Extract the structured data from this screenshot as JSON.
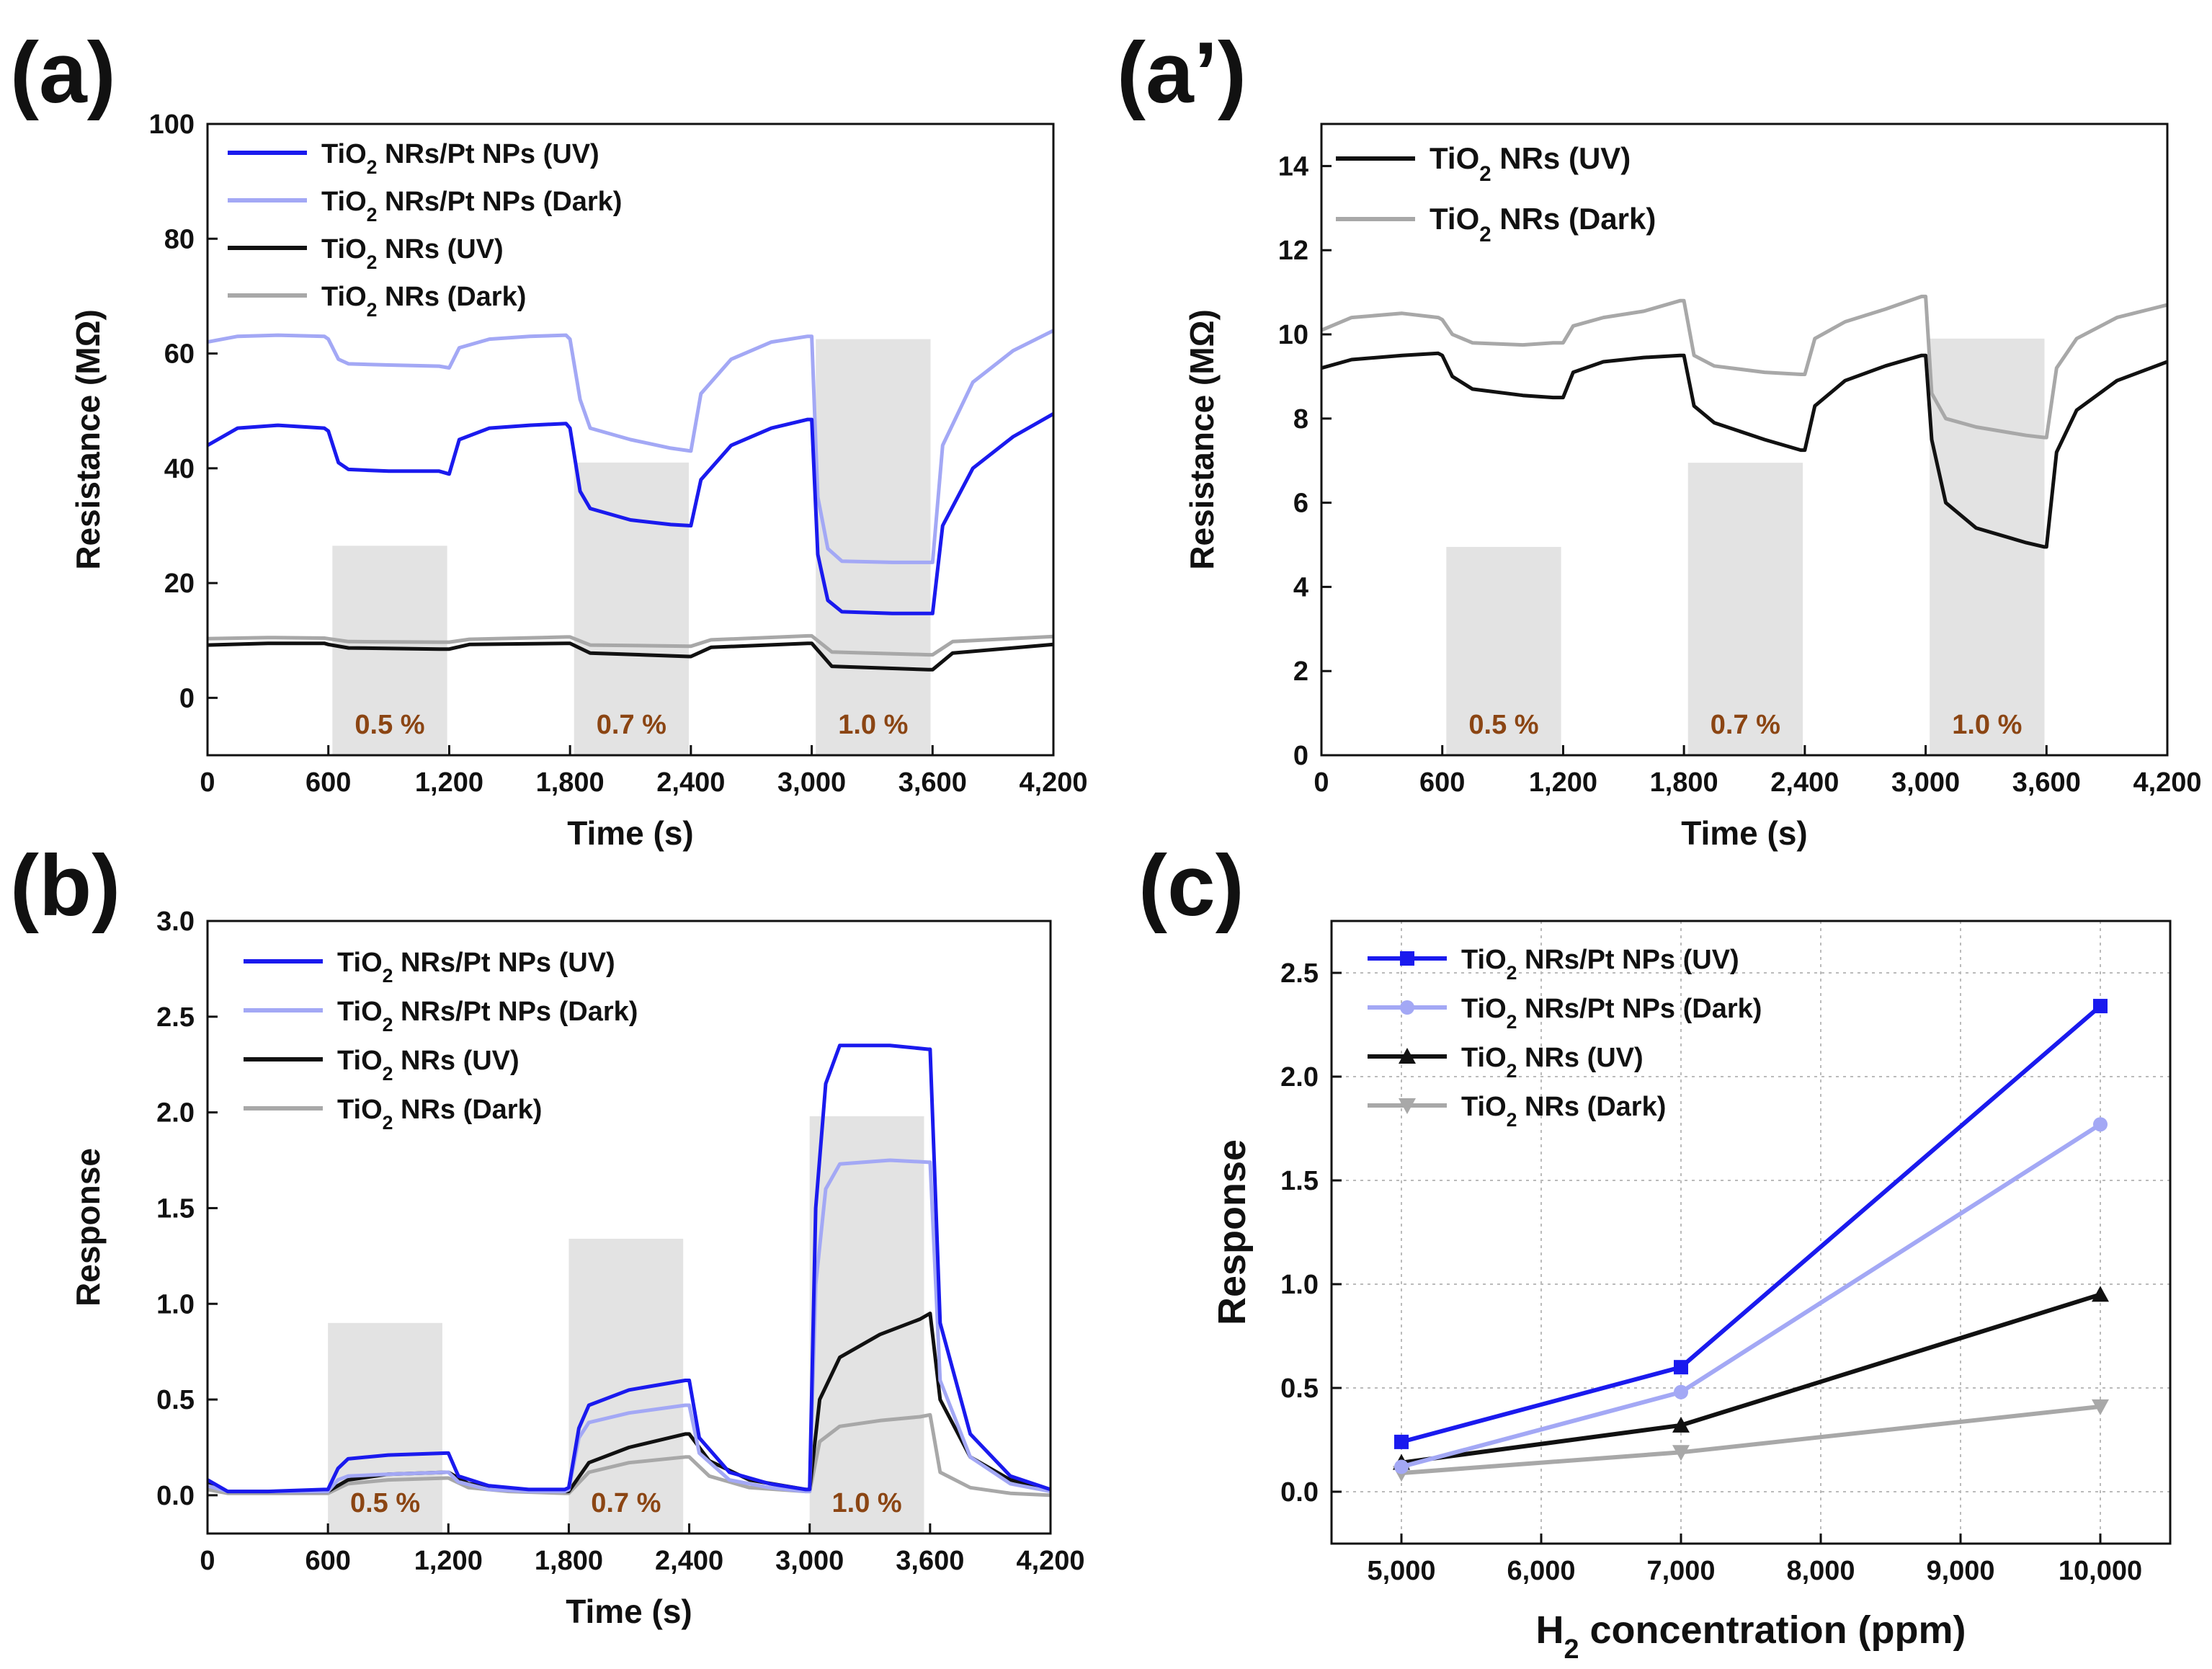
{
  "colors": {
    "pt_uv": "#1a1aee",
    "pt_dark": "#a3a8f5",
    "nr_uv": "#111111",
    "nr_dark": "#a8a8a8",
    "shade": "#e3e3e3",
    "conc_label": "#8b4513"
  },
  "chart_data": [
    {
      "id": "a",
      "type": "line",
      "panel_label": "(a)",
      "xlabel": "Time (s)",
      "ylabel": "Resistance (MΩ)",
      "xlim": [
        0,
        4200
      ],
      "ylim": [
        -10,
        100
      ],
      "xticks": [
        0,
        600,
        1200,
        1800,
        2400,
        3000,
        3600,
        4200
      ],
      "xtick_labels": [
        "0",
        "600",
        "1,200",
        "1,800",
        "2,400",
        "3,000",
        "3,600",
        "4,200"
      ],
      "yticks": [
        0,
        20,
        40,
        60,
        80,
        100
      ],
      "ytick_labels": [
        "0",
        "20",
        "40",
        "60",
        "80",
        "100"
      ],
      "legend_position": "top-left",
      "shaded_regions": [
        {
          "x0": 620,
          "x1": 1190,
          "ytop": 26.5,
          "label": "0.5 %"
        },
        {
          "x0": 1820,
          "x1": 2390,
          "ytop": 41,
          "label": "0.7 %"
        },
        {
          "x0": 3020,
          "x1": 3590,
          "ytop": 62.5,
          "label": "1.0 %"
        }
      ],
      "series": [
        {
          "name": "TiO₂ NRs/Pt NPs (UV)",
          "legend_main": "TiO",
          "legend_sub": "2",
          "legend_rest": " NRs/Pt NPs (UV)",
          "color_key": "pt_uv",
          "x": [
            0,
            150,
            350,
            580,
            600,
            650,
            700,
            900,
            1150,
            1200,
            1250,
            1400,
            1600,
            1780,
            1800,
            1850,
            1900,
            2100,
            2300,
            2400,
            2450,
            2600,
            2800,
            2980,
            3000,
            3030,
            3080,
            3150,
            3400,
            3590,
            3600,
            3650,
            3800,
            4000,
            4200
          ],
          "y": [
            44,
            47,
            47.5,
            47,
            46.5,
            41,
            39.8,
            39.5,
            39.5,
            39,
            45,
            47,
            47.5,
            47.8,
            47,
            36,
            33,
            31,
            30.2,
            30,
            38,
            44,
            47,
            48.5,
            48.5,
            25,
            17,
            15,
            14.7,
            14.7,
            14.7,
            30,
            40,
            45.5,
            49.5
          ]
        },
        {
          "name": "TiO₂ NRs/Pt NPs (Dark)",
          "legend_main": "TiO",
          "legend_sub": "2",
          "legend_rest": " NRs/Pt NPs (Dark)",
          "color_key": "pt_dark",
          "x": [
            0,
            150,
            350,
            580,
            600,
            650,
            700,
            900,
            1150,
            1200,
            1250,
            1400,
            1600,
            1780,
            1800,
            1850,
            1900,
            2100,
            2300,
            2400,
            2450,
            2600,
            2800,
            2980,
            3000,
            3030,
            3080,
            3150,
            3400,
            3590,
            3600,
            3650,
            3800,
            4000,
            4200
          ],
          "y": [
            62,
            63,
            63.2,
            63,
            62.5,
            59,
            58.2,
            58,
            57.8,
            57.5,
            61,
            62.5,
            63,
            63.2,
            62.5,
            52,
            47,
            45,
            43.5,
            43,
            53,
            59,
            62,
            63,
            63,
            35,
            26,
            23.8,
            23.6,
            23.6,
            23.6,
            44,
            55,
            60.5,
            64
          ]
        },
        {
          "name": "TiO₂ NRs (UV)",
          "legend_main": "TiO",
          "legend_sub": "2",
          "legend_rest": " NRs (UV)",
          "color_key": "nr_uv",
          "x": [
            0,
            300,
            580,
            600,
            700,
            1150,
            1200,
            1300,
            1780,
            1800,
            1900,
            2390,
            2400,
            2500,
            2980,
            3000,
            3100,
            3580,
            3600,
            3700,
            4200
          ],
          "y": [
            9.2,
            9.5,
            9.5,
            9.3,
            8.7,
            8.5,
            8.5,
            9.3,
            9.5,
            9.5,
            7.8,
            7.2,
            7.2,
            8.8,
            9.5,
            9.5,
            5.5,
            4.9,
            4.9,
            7.8,
            9.3
          ]
        },
        {
          "name": "TiO₂ NRs (Dark)",
          "legend_main": "TiO",
          "legend_sub": "2",
          "legend_rest": " NRs (Dark)",
          "color_key": "nr_dark",
          "x": [
            0,
            300,
            580,
            600,
            700,
            1150,
            1200,
            1300,
            1780,
            1800,
            1900,
            2390,
            2400,
            2500,
            2980,
            3000,
            3100,
            3580,
            3600,
            3700,
            4200
          ],
          "y": [
            10.3,
            10.5,
            10.4,
            10.3,
            9.8,
            9.7,
            9.7,
            10.2,
            10.6,
            10.6,
            9.2,
            9.0,
            9.0,
            10.1,
            10.8,
            10.8,
            8.0,
            7.5,
            7.5,
            9.8,
            10.7
          ]
        }
      ]
    },
    {
      "id": "a2",
      "type": "line",
      "panel_label": "(a’)",
      "xlabel": "Time (s)",
      "ylabel": "Resistance (MΩ)",
      "xlim": [
        0,
        4200
      ],
      "ylim": [
        0,
        15
      ],
      "xticks": [
        0,
        600,
        1200,
        1800,
        2400,
        3000,
        3600,
        4200
      ],
      "xtick_labels": [
        "0",
        "600",
        "1,200",
        "1,800",
        "2,400",
        "3,000",
        "3,600",
        "4,200"
      ],
      "yticks": [
        0,
        2,
        4,
        6,
        8,
        10,
        12,
        14
      ],
      "ytick_labels": [
        "0",
        "2",
        "4",
        "6",
        "8",
        "10",
        "12",
        "14"
      ],
      "legend_position": "top-left",
      "shaded_regions": [
        {
          "x0": 620,
          "x1": 1190,
          "ytop": 4.95,
          "label": "0.5 %"
        },
        {
          "x0": 1820,
          "x1": 2390,
          "ytop": 6.95,
          "label": "0.7 %"
        },
        {
          "x0": 3020,
          "x1": 3590,
          "ytop": 9.9,
          "label": "1.0 %"
        }
      ],
      "series": [
        {
          "name": "TiO₂ NRs (UV)",
          "legend_main": "TiO",
          "legend_sub": "2",
          "legend_rest": " NRs (UV)",
          "color_key": "nr_uv",
          "x": [
            0,
            150,
            400,
            580,
            600,
            650,
            750,
            1000,
            1150,
            1200,
            1250,
            1400,
            1600,
            1780,
            1800,
            1850,
            1950,
            2200,
            2380,
            2400,
            2450,
            2600,
            2800,
            2980,
            3000,
            3030,
            3100,
            3250,
            3500,
            3590,
            3600,
            3650,
            3750,
            3950,
            4200
          ],
          "y": [
            9.2,
            9.4,
            9.5,
            9.55,
            9.5,
            9.0,
            8.7,
            8.55,
            8.5,
            8.5,
            9.1,
            9.35,
            9.45,
            9.5,
            9.5,
            8.3,
            7.9,
            7.5,
            7.25,
            7.25,
            8.3,
            8.9,
            9.25,
            9.5,
            9.5,
            7.5,
            6.0,
            5.4,
            5.05,
            4.95,
            4.95,
            7.2,
            8.2,
            8.9,
            9.35
          ]
        },
        {
          "name": "TiO₂ NRs (Dark)",
          "legend_main": "TiO",
          "legend_sub": "2",
          "legend_rest": " NRs (Dark)",
          "color_key": "nr_dark",
          "x": [
            0,
            150,
            400,
            580,
            600,
            650,
            750,
            1000,
            1150,
            1200,
            1250,
            1400,
            1600,
            1780,
            1800,
            1850,
            1950,
            2200,
            2380,
            2400,
            2450,
            2600,
            2800,
            2980,
            3000,
            3030,
            3100,
            3250,
            3500,
            3590,
            3600,
            3650,
            3750,
            3950,
            4200
          ],
          "y": [
            10.1,
            10.4,
            10.5,
            10.4,
            10.35,
            10.0,
            9.8,
            9.75,
            9.8,
            9.8,
            10.2,
            10.4,
            10.55,
            10.8,
            10.8,
            9.5,
            9.25,
            9.1,
            9.05,
            9.05,
            9.9,
            10.3,
            10.6,
            10.9,
            10.9,
            8.6,
            8.0,
            7.8,
            7.6,
            7.55,
            7.55,
            9.2,
            9.9,
            10.4,
            10.7
          ]
        }
      ]
    },
    {
      "id": "b",
      "type": "line",
      "panel_label": "(b)",
      "xlabel": "Time (s)",
      "ylabel": "Response",
      "xlim": [
        0,
        4200
      ],
      "ylim": [
        -0.2,
        3.0
      ],
      "xticks": [
        0,
        600,
        1200,
        1800,
        2400,
        3000,
        3600,
        4200
      ],
      "xtick_labels": [
        "0",
        "600",
        "1,200",
        "1,800",
        "2,400",
        "3,000",
        "3,600",
        "4,200"
      ],
      "yticks": [
        0.0,
        0.5,
        1.0,
        1.5,
        2.0,
        2.5,
        3.0
      ],
      "ytick_labels": [
        "0.0",
        "0.5",
        "1.0",
        "1.5",
        "2.0",
        "2.5",
        "3.0"
      ],
      "legend_position": "top-left",
      "shaded_regions": [
        {
          "x0": 600,
          "x1": 1170,
          "ytop": 0.9,
          "label": "0.5 %"
        },
        {
          "x0": 1800,
          "x1": 2370,
          "ytop": 1.34,
          "label": "0.7 %"
        },
        {
          "x0": 3000,
          "x1": 3570,
          "ytop": 1.98,
          "label": "1.0 %"
        }
      ],
      "series": [
        {
          "name": "TiO₂ NRs/Pt NPs (UV)",
          "legend_main": "TiO",
          "legend_sub": "2",
          "legend_rest": " NRs/Pt NPs (UV)",
          "color_key": "pt_uv",
          "x": [
            0,
            100,
            300,
            580,
            600,
            650,
            700,
            900,
            1190,
            1200,
            1250,
            1400,
            1600,
            1780,
            1800,
            1850,
            1900,
            2100,
            2380,
            2400,
            2450,
            2600,
            2800,
            2980,
            3000,
            3030,
            3080,
            3150,
            3400,
            3590,
            3600,
            3650,
            3800,
            4000,
            4200
          ],
          "y": [
            0.08,
            0.02,
            0.02,
            0.03,
            0.03,
            0.14,
            0.19,
            0.21,
            0.22,
            0.22,
            0.1,
            0.05,
            0.03,
            0.03,
            0.04,
            0.35,
            0.47,
            0.55,
            0.6,
            0.6,
            0.3,
            0.12,
            0.06,
            0.03,
            0.03,
            1.5,
            2.15,
            2.35,
            2.35,
            2.33,
            2.33,
            0.9,
            0.32,
            0.1,
            0.03
          ]
        },
        {
          "name": "TiO₂ NRs/Pt NPs (Dark)",
          "legend_main": "TiO",
          "legend_sub": "2",
          "legend_rest": " NRs/Pt NPs (Dark)",
          "color_key": "pt_dark",
          "x": [
            0,
            100,
            300,
            580,
            600,
            650,
            700,
            900,
            1190,
            1200,
            1250,
            1400,
            1600,
            1780,
            1800,
            1850,
            1900,
            2100,
            2380,
            2400,
            2450,
            2600,
            2800,
            2980,
            3000,
            3030,
            3080,
            3150,
            3400,
            3590,
            3600,
            3650,
            3800,
            4000,
            4200
          ],
          "y": [
            0.05,
            0.02,
            0.02,
            0.02,
            0.02,
            0.08,
            0.1,
            0.11,
            0.12,
            0.12,
            0.07,
            0.03,
            0.02,
            0.02,
            0.03,
            0.3,
            0.38,
            0.43,
            0.47,
            0.47,
            0.22,
            0.08,
            0.04,
            0.02,
            0.02,
            1.1,
            1.6,
            1.73,
            1.75,
            1.74,
            1.74,
            0.6,
            0.2,
            0.06,
            0.02
          ]
        },
        {
          "name": "TiO₂ NRs (UV)",
          "legend_main": "TiO",
          "legend_sub": "2",
          "legend_rest": " NRs (UV)",
          "color_key": "nr_uv",
          "x": [
            0,
            100,
            300,
            580,
            600,
            700,
            900,
            1190,
            1200,
            1300,
            1500,
            1780,
            1800,
            1900,
            2100,
            2380,
            2400,
            2500,
            2700,
            2980,
            3000,
            3050,
            3150,
            3350,
            3550,
            3600,
            3650,
            3800,
            4000,
            4200
          ],
          "y": [
            0.06,
            0.02,
            0.02,
            0.02,
            0.02,
            0.08,
            0.11,
            0.12,
            0.12,
            0.06,
            0.03,
            0.02,
            0.02,
            0.17,
            0.25,
            0.32,
            0.32,
            0.18,
            0.08,
            0.03,
            0.03,
            0.5,
            0.72,
            0.84,
            0.92,
            0.95,
            0.5,
            0.2,
            0.08,
            0.03
          ]
        },
        {
          "name": "TiO₂ NRs (Dark)",
          "legend_main": "TiO",
          "legend_sub": "2",
          "legend_rest": " NRs (Dark)",
          "color_key": "nr_dark",
          "x": [
            0,
            100,
            300,
            580,
            600,
            700,
            900,
            1190,
            1200,
            1300,
            1500,
            1780,
            1800,
            1900,
            2100,
            2380,
            2400,
            2500,
            2700,
            2980,
            3000,
            3050,
            3150,
            3350,
            3550,
            3600,
            3650,
            3800,
            4000,
            4200
          ],
          "y": [
            0.03,
            0.01,
            0.01,
            0.01,
            0.01,
            0.06,
            0.08,
            0.09,
            0.09,
            0.04,
            0.02,
            0.01,
            0.01,
            0.12,
            0.17,
            0.2,
            0.2,
            0.1,
            0.04,
            0.02,
            0.02,
            0.28,
            0.36,
            0.39,
            0.41,
            0.42,
            0.12,
            0.04,
            0.01,
            0.0
          ]
        }
      ]
    },
    {
      "id": "c",
      "type": "line",
      "panel_label": "(c)",
      "xlabel_main": "H",
      "xlabel_sub": "2",
      "xlabel_rest": " concentration (ppm)",
      "ylabel": "Response",
      "xlim": [
        4500,
        10500
      ],
      "ylim": [
        -0.25,
        2.75
      ],
      "xticks": [
        5000,
        6000,
        7000,
        8000,
        9000,
        10000
      ],
      "xtick_labels": [
        "5,000",
        "6,000",
        "7,000",
        "8,000",
        "9,000",
        "10,000"
      ],
      "yticks": [
        0.0,
        0.5,
        1.0,
        1.5,
        2.0,
        2.5
      ],
      "ytick_labels": [
        "0.0",
        "0.5",
        "1.0",
        "1.5",
        "2.0",
        "2.5"
      ],
      "grid": true,
      "legend_position": "top-left",
      "series": [
        {
          "name": "TiO₂ NRs/Pt NPs (UV)",
          "legend_main": "TiO",
          "legend_sub": "2",
          "legend_rest": " NRs/Pt NPs (UV)",
          "color_key": "pt_uv",
          "marker": "square",
          "x": [
            5000,
            7000,
            10000
          ],
          "y": [
            0.24,
            0.6,
            2.34
          ]
        },
        {
          "name": "TiO₂ NRs/Pt NPs (Dark)",
          "legend_main": "TiO",
          "legend_sub": "2",
          "legend_rest": " NRs/Pt NPs (Dark)",
          "color_key": "pt_dark",
          "marker": "circle",
          "x": [
            5000,
            7000,
            10000
          ],
          "y": [
            0.12,
            0.48,
            1.77
          ]
        },
        {
          "name": "TiO₂ NRs (UV)",
          "legend_main": "TiO",
          "legend_sub": "2",
          "legend_rest": " NRs (UV)",
          "color_key": "nr_uv",
          "marker": "triangle-up",
          "x": [
            5000,
            7000,
            10000
          ],
          "y": [
            0.14,
            0.32,
            0.95
          ]
        },
        {
          "name": "TiO₂ NRs (Dark)",
          "legend_main": "TiO",
          "legend_sub": "2",
          "legend_rest": " NRs (Dark)",
          "color_key": "nr_dark",
          "marker": "triangle-down",
          "x": [
            5000,
            7000,
            10000
          ],
          "y": [
            0.09,
            0.19,
            0.41
          ]
        }
      ]
    }
  ]
}
